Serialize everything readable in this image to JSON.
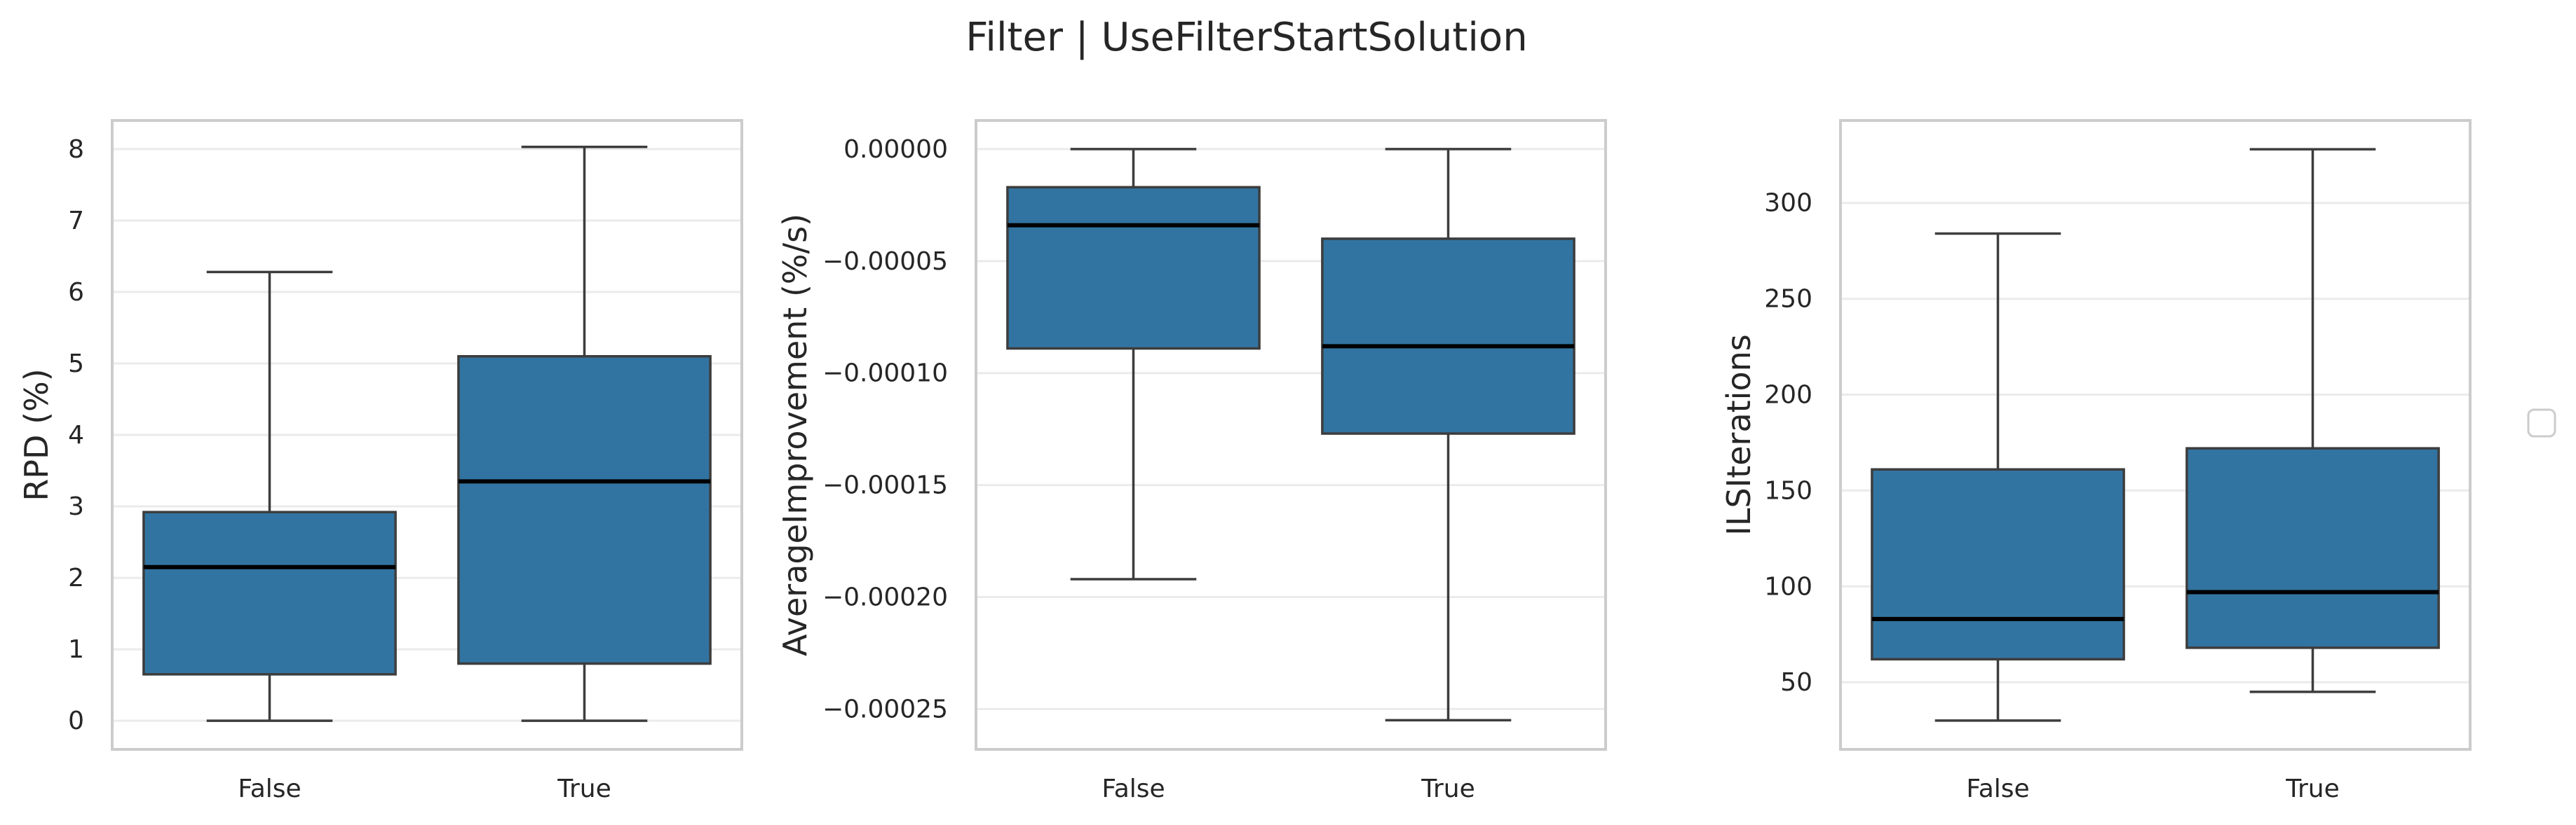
{
  "figure": {
    "title": "Filter | UseFilterStartSolution",
    "legend": {
      "placement": "right",
      "entries": []
    }
  },
  "chart_data": [
    {
      "type": "box",
      "title": "",
      "xlabel": "",
      "ylabel": "RPD (%)",
      "categories": [
        "False",
        "True"
      ],
      "ylim": [
        -0.4,
        8.4
      ],
      "yticks": [
        0,
        1,
        2,
        3,
        4,
        5,
        6,
        7,
        8
      ],
      "ytick_labels": [
        "0",
        "1",
        "2",
        "3",
        "4",
        "5",
        "6",
        "7",
        "8"
      ],
      "grid": true,
      "boxes": [
        {
          "category": "False",
          "min": 0,
          "q1": 0.65,
          "median": 2.15,
          "q3": 2.92,
          "max": 6.28
        },
        {
          "category": "True",
          "min": 0,
          "q1": 0.8,
          "median": 3.35,
          "q3": 5.1,
          "max": 8.03
        }
      ],
      "color": "#3274a1"
    },
    {
      "type": "box",
      "title": "",
      "xlabel": "",
      "ylabel": "AverageImprovement (%/s)",
      "categories": [
        "False",
        "True"
      ],
      "ylim": [
        -0.000268,
        1.28e-05
      ],
      "yticks": [
        0,
        -5e-05,
        -0.0001,
        -0.00015,
        -0.0002,
        -0.00025
      ],
      "ytick_labels": [
        "0.00000",
        "−0.00005",
        "−0.00010",
        "−0.00015",
        "−0.00020",
        "−0.00025"
      ],
      "grid": true,
      "boxes": [
        {
          "category": "False",
          "min": -0.000192,
          "q1": -8.9e-05,
          "median": -3.4e-05,
          "q3": -1.7e-05,
          "max": 0
        },
        {
          "category": "True",
          "min": -0.000255,
          "q1": -0.000127,
          "median": -8.8e-05,
          "q3": -4e-05,
          "max": 0
        }
      ],
      "color": "#3274a1"
    },
    {
      "type": "box",
      "title": "",
      "xlabel": "",
      "ylabel": "ILSIterations",
      "categories": [
        "False",
        "True"
      ],
      "ylim": [
        15,
        343
      ],
      "yticks": [
        50,
        100,
        150,
        200,
        250,
        300
      ],
      "ytick_labels": [
        "50",
        "100",
        "150",
        "200",
        "250",
        "300"
      ],
      "grid": true,
      "boxes": [
        {
          "category": "False",
          "min": 30,
          "q1": 62,
          "median": 83,
          "q3": 161,
          "max": 284
        },
        {
          "category": "True",
          "min": 45,
          "q1": 68,
          "median": 97,
          "q3": 172,
          "max": 328
        }
      ],
      "color": "#3274a1"
    }
  ]
}
